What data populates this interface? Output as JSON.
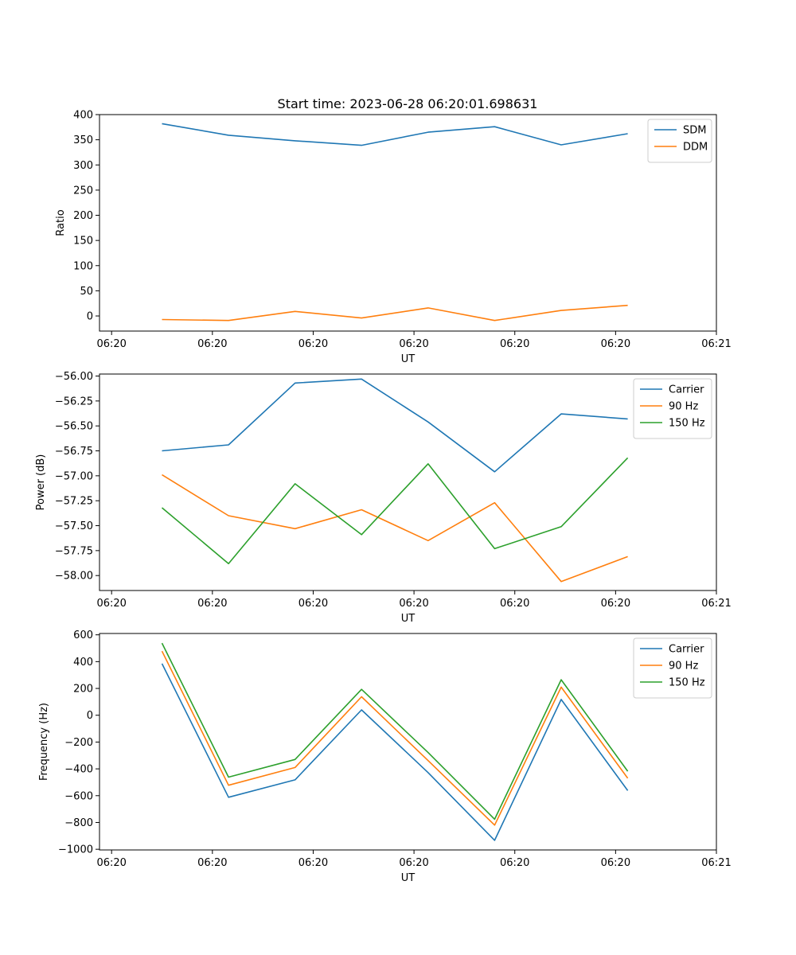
{
  "figure_title": "Start time: 2023-06-28 06:20:01.698631",
  "chart_data": [
    {
      "type": "line",
      "title": "Start time: 2023-06-28 06:20:01.698631",
      "xlabel": "UT",
      "ylabel": "Ratio",
      "xticks": [
        "06:20",
        "06:20",
        "06:20",
        "06:20",
        "06:20",
        "06:20",
        "06:21"
      ],
      "xtick_pos": [
        0,
        1,
        2,
        3,
        4,
        5,
        6
      ],
      "xlim": [
        -0.12,
        6.0
      ],
      "x": [
        0.5,
        1.16,
        1.82,
        2.48,
        3.14,
        3.8,
        4.46,
        5.12
      ],
      "yticks": [
        0,
        50,
        100,
        150,
        200,
        250,
        300,
        350,
        400
      ],
      "ytick_labels": [
        "0",
        "50",
        "100",
        "150",
        "200",
        "250",
        "300",
        "350",
        "400"
      ],
      "ylim": [
        -30,
        400
      ],
      "legend": "top-right",
      "series": [
        {
          "name": "SDM",
          "color": "#1f77b4",
          "values": [
            382,
            359,
            348,
            339,
            365,
            376,
            340,
            362
          ]
        },
        {
          "name": "DDM",
          "color": "#ff7f0e",
          "values": [
            -7,
            -9,
            9,
            -4,
            16,
            -9,
            11,
            21
          ]
        }
      ]
    },
    {
      "type": "line",
      "xlabel": "UT",
      "ylabel": "Power (dB)",
      "xticks": [
        "06:20",
        "06:20",
        "06:20",
        "06:20",
        "06:20",
        "06:20",
        "06:21"
      ],
      "xtick_pos": [
        0,
        1,
        2,
        3,
        4,
        5,
        6
      ],
      "xlim": [
        -0.12,
        6.0
      ],
      "x": [
        0.5,
        1.16,
        1.82,
        2.48,
        3.14,
        3.8,
        4.46,
        5.12
      ],
      "yticks": [
        -58.0,
        -57.75,
        -57.5,
        -57.25,
        -57.0,
        -56.75,
        -56.5,
        -56.25,
        -56.0
      ],
      "ytick_labels": [
        "−58.00",
        "−57.75",
        "−57.50",
        "−57.25",
        "−57.00",
        "−56.75",
        "−56.50",
        "−56.25",
        "−56.00"
      ],
      "ylim": [
        -58.15,
        -55.98
      ],
      "legend": "top-right",
      "series": [
        {
          "name": "Carrier",
          "color": "#1f77b4",
          "values": [
            -56.75,
            -56.69,
            -56.07,
            -56.03,
            -56.46,
            -56.96,
            -56.38,
            -56.43
          ]
        },
        {
          "name": "90 Hz",
          "color": "#ff7f0e",
          "values": [
            -56.99,
            -57.4,
            -57.53,
            -57.34,
            -57.65,
            -57.27,
            -58.06,
            -57.81
          ]
        },
        {
          "name": "150 Hz",
          "color": "#2ca02c",
          "values": [
            -57.32,
            -57.88,
            -57.08,
            -57.59,
            -56.88,
            -57.73,
            -57.51,
            -56.82
          ]
        }
      ]
    },
    {
      "type": "line",
      "xlabel": "UT",
      "ylabel": "Frequency (Hz)",
      "xticks": [
        "06:20",
        "06:20",
        "06:20",
        "06:20",
        "06:20",
        "06:20",
        "06:21"
      ],
      "xtick_pos": [
        0,
        1,
        2,
        3,
        4,
        5,
        6
      ],
      "xlim": [
        -0.12,
        6.0
      ],
      "x": [
        0.5,
        1.16,
        1.82,
        2.48,
        3.14,
        3.8,
        4.46,
        5.12
      ],
      "yticks": [
        -1000,
        -800,
        -600,
        -400,
        -200,
        0,
        200,
        400,
        600
      ],
      "ytick_labels": [
        "−1000",
        "−800",
        "−600",
        "−400",
        "−200",
        "0",
        "200",
        "400",
        "600"
      ],
      "ylim": [
        -1005,
        610
      ],
      "legend": "top-right",
      "series": [
        {
          "name": "Carrier",
          "color": "#1f77b4",
          "values": [
            385,
            -612,
            -482,
            40,
            -428,
            -933,
            118,
            -562
          ]
        },
        {
          "name": "90 Hz",
          "color": "#ff7f0e",
          "values": [
            478,
            -522,
            -390,
            138,
            -338,
            -820,
            210,
            -470
          ]
        },
        {
          "name": "150 Hz",
          "color": "#2ca02c",
          "values": [
            538,
            -462,
            -330,
            193,
            -278,
            -776,
            265,
            -418
          ]
        }
      ]
    }
  ]
}
